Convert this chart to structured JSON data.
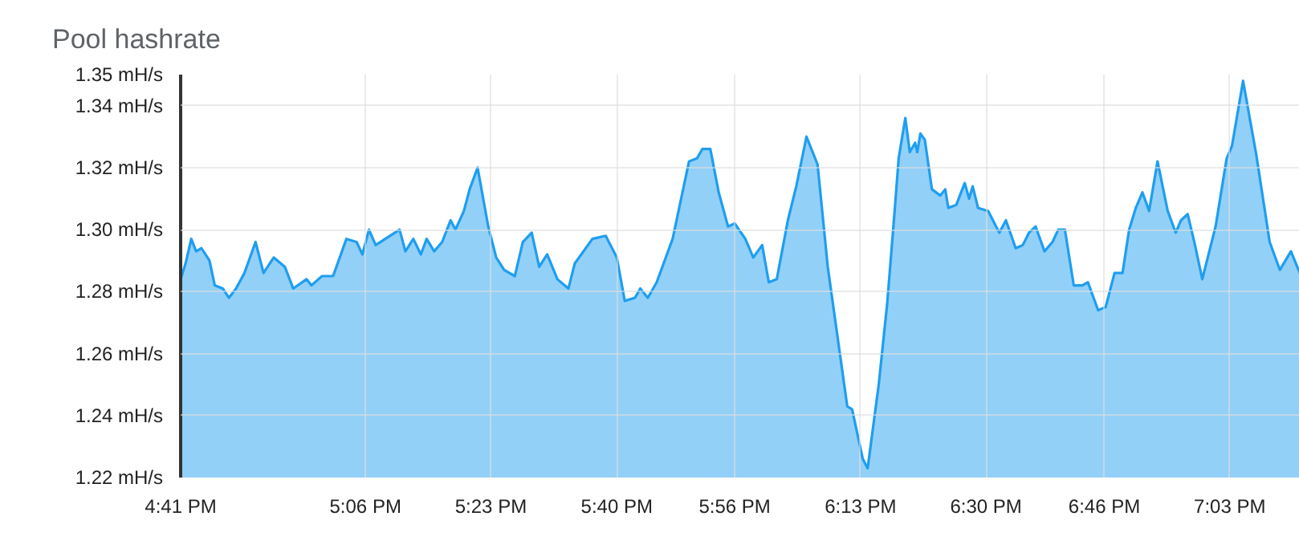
{
  "chart_data": {
    "type": "area",
    "title": "Pool hashrate",
    "x": [
      16.683,
      16.694,
      16.707,
      16.718,
      16.73,
      16.748,
      16.76,
      16.778,
      16.792,
      16.808,
      16.827,
      16.852,
      16.87,
      16.893,
      16.918,
      16.937,
      16.967,
      16.978,
      17.002,
      17.027,
      17.057,
      17.08,
      17.093,
      17.108,
      17.123,
      17.177,
      17.19,
      17.208,
      17.225,
      17.238,
      17.255,
      17.273,
      17.292,
      17.303,
      17.322,
      17.335,
      17.353,
      17.377,
      17.395,
      17.413,
      17.437,
      17.455,
      17.475,
      17.492,
      17.51,
      17.533,
      17.558,
      17.572,
      17.612,
      17.642,
      17.667,
      17.685,
      17.708,
      17.72,
      17.737,
      17.757,
      17.775,
      17.793,
      17.83,
      17.848,
      17.86,
      17.878,
      17.897,
      17.918,
      17.933,
      17.957,
      17.975,
      17.995,
      18.01,
      18.028,
      18.053,
      18.072,
      18.095,
      18.12,
      18.143,
      18.187,
      18.198,
      18.222,
      18.233,
      18.258,
      18.277,
      18.295,
      18.303,
      18.318,
      18.328,
      18.34,
      18.345,
      18.352,
      18.362,
      18.378,
      18.397,
      18.408,
      18.415,
      18.433,
      18.452,
      18.462,
      18.47,
      18.482,
      18.505,
      18.53,
      18.545,
      18.567,
      18.583,
      18.597,
      18.612,
      18.632,
      18.65,
      18.663,
      18.678,
      18.698,
      18.717,
      18.73,
      18.753,
      18.77,
      18.79,
      18.808,
      18.823,
      18.838,
      18.853,
      18.868,
      18.887,
      18.91,
      18.928,
      18.94,
      18.955,
      18.97,
      18.988,
      19.018,
      19.043,
      19.055,
      19.08,
      19.11,
      19.14,
      19.163,
      19.188,
      19.208
    ],
    "series": [
      {
        "color": "#1e9ef0",
        "values": [
          1.284,
          1.289,
          1.297,
          1.293,
          1.294,
          1.29,
          1.282,
          1.281,
          1.278,
          1.281,
          1.286,
          1.296,
          1.286,
          1.291,
          1.288,
          1.281,
          1.284,
          1.282,
          1.285,
          1.285,
          1.297,
          1.296,
          1.292,
          1.3,
          1.295,
          1.3,
          1.293,
          1.297,
          1.292,
          1.297,
          1.293,
          1.296,
          1.303,
          1.3,
          1.306,
          1.313,
          1.32,
          1.301,
          1.291,
          1.287,
          1.285,
          1.296,
          1.299,
          1.288,
          1.292,
          1.284,
          1.281,
          1.289,
          1.297,
          1.298,
          1.291,
          1.277,
          1.278,
          1.281,
          1.278,
          1.283,
          1.29,
          1.297,
          1.322,
          1.323,
          1.326,
          1.326,
          1.312,
          1.301,
          1.302,
          1.297,
          1.291,
          1.295,
          1.283,
          1.284,
          1.303,
          1.314,
          1.33,
          1.321,
          1.288,
          1.243,
          1.242,
          1.226,
          1.223,
          1.25,
          1.276,
          1.308,
          1.323,
          1.336,
          1.325,
          1.328,
          1.325,
          1.331,
          1.329,
          1.313,
          1.311,
          1.313,
          1.307,
          1.308,
          1.315,
          1.31,
          1.314,
          1.307,
          1.306,
          1.299,
          1.303,
          1.294,
          1.295,
          1.299,
          1.301,
          1.293,
          1.296,
          1.3,
          1.3,
          1.282,
          1.282,
          1.283,
          1.274,
          1.275,
          1.286,
          1.286,
          1.3,
          1.307,
          1.312,
          1.306,
          1.322,
          1.306,
          1.299,
          1.303,
          1.305,
          1.296,
          1.284,
          1.301,
          1.323,
          1.327,
          1.348,
          1.324,
          1.296,
          1.287,
          1.293,
          1.286
        ]
      }
    ],
    "xlim": [
      16.683,
      19.208
    ],
    "xticks": [
      {
        "value": 16.683,
        "label": "4:41 PM"
      },
      {
        "value": 17.1,
        "label": "5:06 PM"
      },
      {
        "value": 17.383,
        "label": "5:23 PM"
      },
      {
        "value": 17.667,
        "label": "5:40 PM"
      },
      {
        "value": 17.933,
        "label": "5:56 PM"
      },
      {
        "value": 18.217,
        "label": "6:13 PM"
      },
      {
        "value": 18.5,
        "label": "6:30 PM"
      },
      {
        "value": 18.767,
        "label": "6:46 PM"
      },
      {
        "value": 19.05,
        "label": "7:03 PM"
      }
    ],
    "ylim": [
      1.22,
      1.35
    ],
    "yticks": [
      {
        "value": 1.22,
        "label": "1.22 mH/s"
      },
      {
        "value": 1.24,
        "label": "1.24 mH/s"
      },
      {
        "value": 1.26,
        "label": "1.26 mH/s"
      },
      {
        "value": 1.28,
        "label": "1.28 mH/s"
      },
      {
        "value": 1.3,
        "label": "1.30 mH/s"
      },
      {
        "value": 1.32,
        "label": "1.32 mH/s"
      },
      {
        "value": 1.34,
        "label": "1.34 mH/s"
      },
      {
        "value": 1.35,
        "label": "1.35 mH/s"
      }
    ],
    "grid": true
  }
}
